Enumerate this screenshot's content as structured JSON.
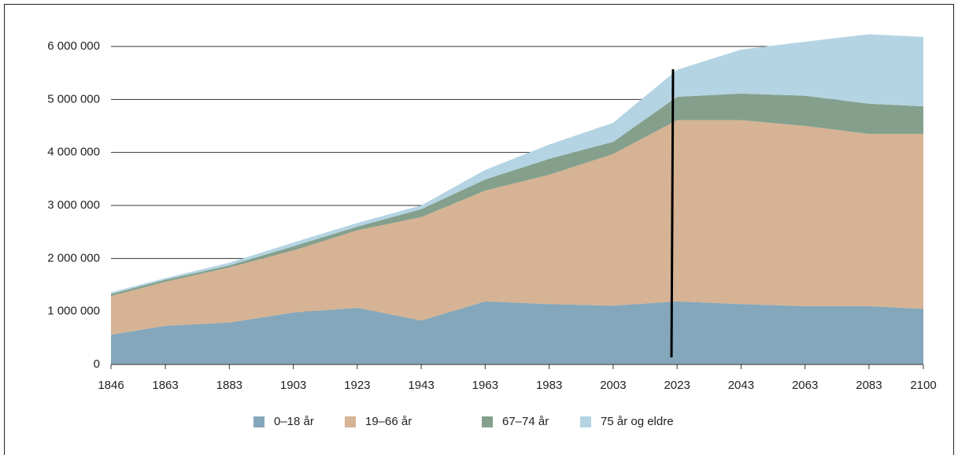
{
  "chart_data": {
    "type": "stacked_area",
    "x": [
      1846,
      1863,
      1883,
      1903,
      1923,
      1943,
      1963,
      1983,
      2003,
      2023,
      2043,
      2063,
      2083,
      2100
    ],
    "xlim": [
      1846,
      2100
    ],
    "xticks": [
      1846,
      1863,
      1883,
      1903,
      1923,
      1943,
      1963,
      1983,
      2003,
      2023,
      2043,
      2063,
      2083,
      2100
    ],
    "ylim": [
      0,
      6000000
    ],
    "yticks": [
      0,
      {
        "value": 1000000,
        "label": "1 000 000"
      },
      {
        "value": 2000000,
        "label": "2 000 000"
      },
      {
        "value": 3000000,
        "label": "3 000 000"
      },
      {
        "value": 4000000,
        "label": "4 000 000"
      },
      {
        "value": 5000000,
        "label": "5 000 000"
      },
      {
        "value": 6000000,
        "label": "6 000 000"
      }
    ],
    "grid": true,
    "legend": "bottom",
    "series": [
      {
        "name": "0–18 år",
        "color": "#84a7bb",
        "values": [
          560000,
          730000,
          790000,
          980000,
          1070000,
          830000,
          1190000,
          1140000,
          1110000,
          1190000,
          1140000,
          1100000,
          1100000,
          1050000
        ]
      },
      {
        "name": "19–66 år",
        "color": "#d6b394",
        "values": [
          730000,
          830000,
          1040000,
          1170000,
          1460000,
          1950000,
          2090000,
          2440000,
          2860000,
          3420000,
          3470000,
          3400000,
          3250000,
          3300000
        ]
      },
      {
        "name": "67–74 år",
        "color": "#84a08d",
        "values": [
          40000,
          40000,
          40000,
          80000,
          70000,
          150000,
          210000,
          300000,
          230000,
          440000,
          500000,
          570000,
          570000,
          520000
        ]
      },
      {
        "name": "75 år og eldre",
        "color": "#b4d4e3",
        "values": [
          30000,
          30000,
          50000,
          70000,
          70000,
          70000,
          180000,
          270000,
          360000,
          510000,
          830000,
          1020000,
          1310000,
          1310000
        ]
      }
    ]
  }
}
